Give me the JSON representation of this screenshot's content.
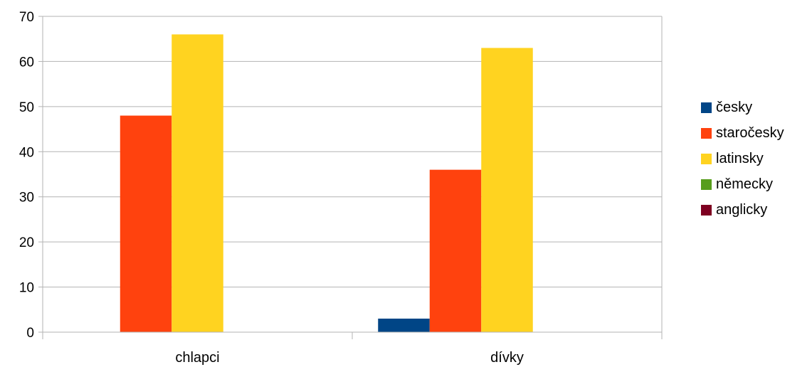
{
  "chart_data": {
    "type": "bar",
    "title": "",
    "xlabel": "",
    "ylabel": "",
    "categories": [
      "chlapci",
      "dívky"
    ],
    "series": [
      {
        "name": "česky",
        "color": "#004586",
        "values": [
          0,
          3
        ]
      },
      {
        "name": "staročesky",
        "color": "#ff420e",
        "values": [
          48,
          36
        ]
      },
      {
        "name": "latinsky",
        "color": "#ffd320",
        "values": [
          66,
          63
        ]
      },
      {
        "name": "německy",
        "color": "#579d1c",
        "values": [
          0,
          0
        ]
      },
      {
        "name": "anglicky",
        "color": "#7e0021",
        "values": [
          0,
          0
        ]
      }
    ],
    "ylim": [
      0,
      70
    ],
    "yticks": [
      0,
      10,
      20,
      30,
      40,
      50,
      60,
      70
    ],
    "grid": true,
    "legend_position": "right"
  }
}
